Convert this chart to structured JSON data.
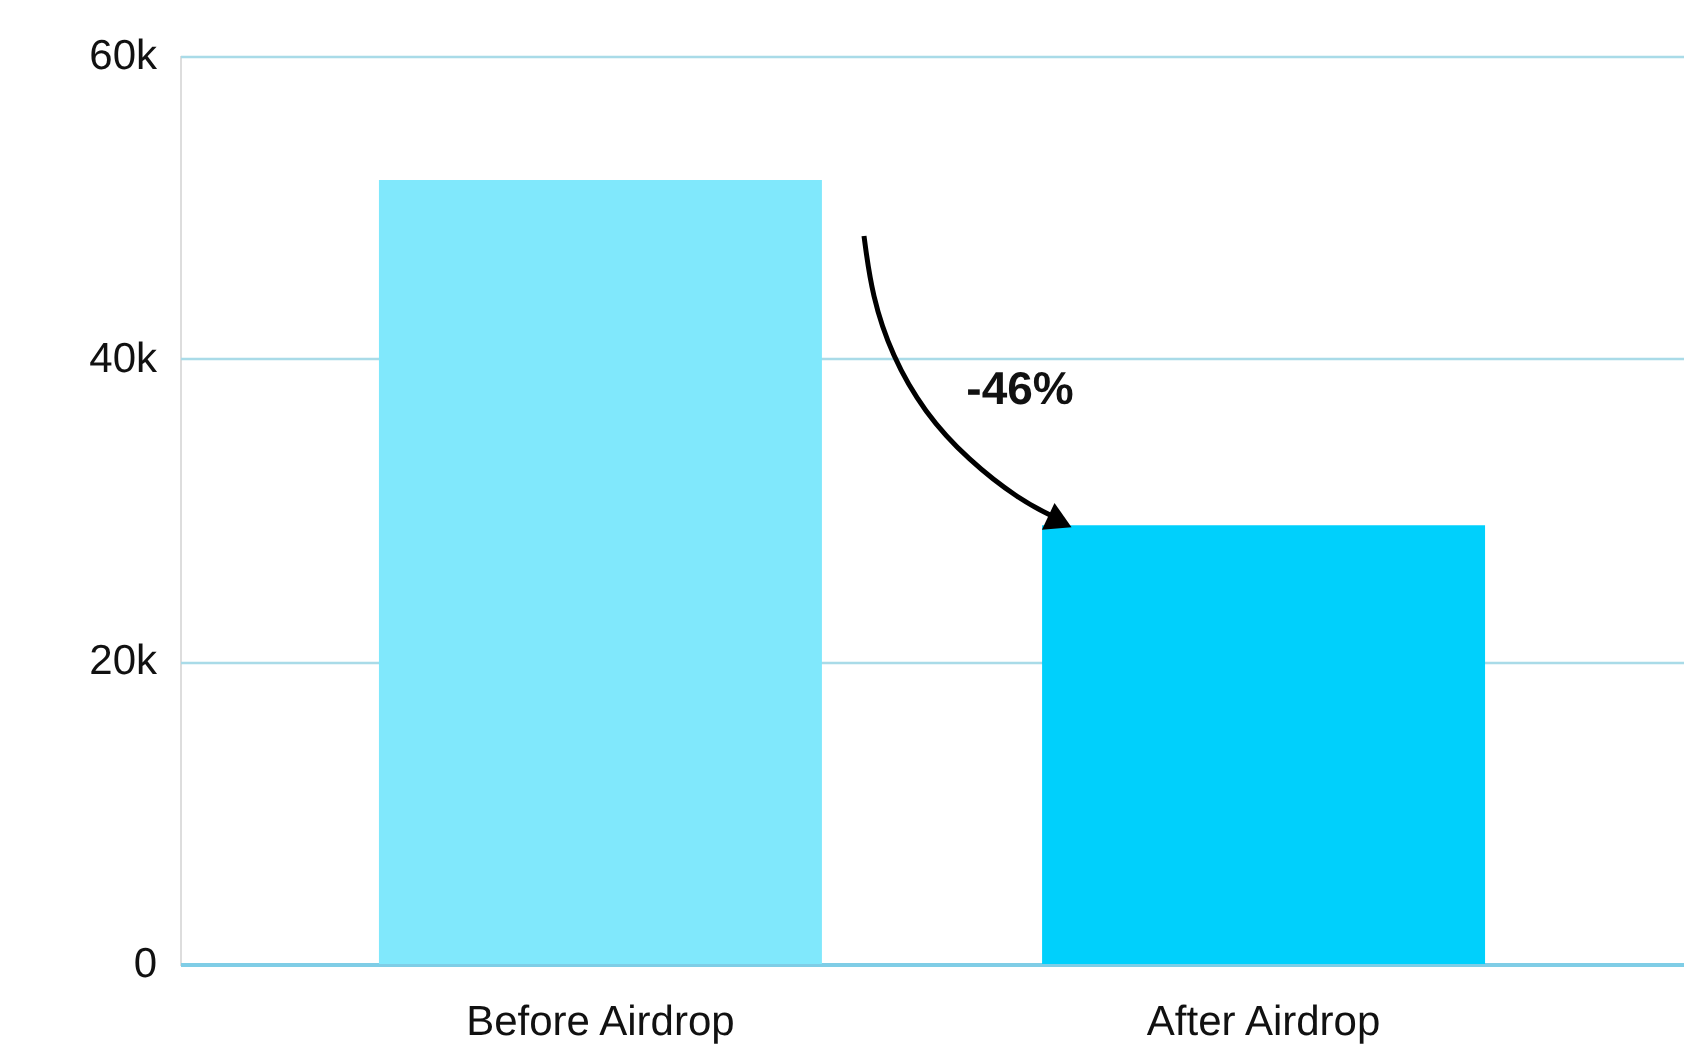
{
  "chart_data": {
    "type": "bar",
    "categories": [
      "Before Airdrop",
      "After Airdrop"
    ],
    "values": [
      51800,
      29000
    ],
    "colors": [
      "#80e8fc",
      "#00d0fc"
    ],
    "ylim": [
      0,
      60000
    ],
    "yticks": [
      {
        "value": 0,
        "label": "0"
      },
      {
        "value": 20000,
        "label": "20k"
      },
      {
        "value": 40000,
        "label": "40k"
      },
      {
        "value": 60000,
        "label": "60k"
      }
    ],
    "grid": "y",
    "annotations": [
      "-46%"
    ]
  }
}
